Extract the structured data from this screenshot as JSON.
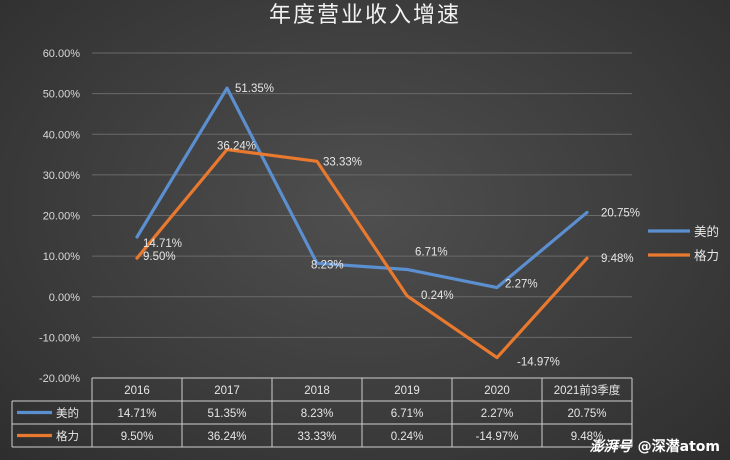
{
  "chart_data": {
    "type": "line",
    "title": "年度营业收入增速",
    "categories": [
      "2016",
      "2017",
      "2018",
      "2019",
      "2020",
      "2021前3季度"
    ],
    "series": [
      {
        "name": "美的",
        "values": [
          14.71,
          51.35,
          8.23,
          6.71,
          2.27,
          20.75
        ],
        "labels": [
          "14.71%",
          "51.35%",
          "8.23%",
          "6.71%",
          "2.27%",
          "20.75%"
        ],
        "color": "#5b8fd0"
      },
      {
        "name": "格力",
        "values": [
          9.5,
          36.24,
          33.33,
          0.24,
          -14.97,
          9.48
        ],
        "labels": [
          "9.50%",
          "36.24%",
          "33.33%",
          "0.24%",
          "-14.97%",
          "9.48%"
        ],
        "color": "#e8792e"
      }
    ],
    "ylim": [
      -20,
      60
    ],
    "yticks": [
      "60.00%",
      "50.00%",
      "40.00%",
      "30.00%",
      "20.00%",
      "10.00%",
      "0.00%",
      "-10.00%",
      "-20.00%"
    ],
    "ytick_values": [
      60,
      50,
      40,
      30,
      20,
      10,
      0,
      -10,
      -20
    ],
    "grid": true,
    "legend": "right",
    "data_table": true
  },
  "watermark": {
    "logo": "澎湃号",
    "text": "@深潜atom"
  }
}
